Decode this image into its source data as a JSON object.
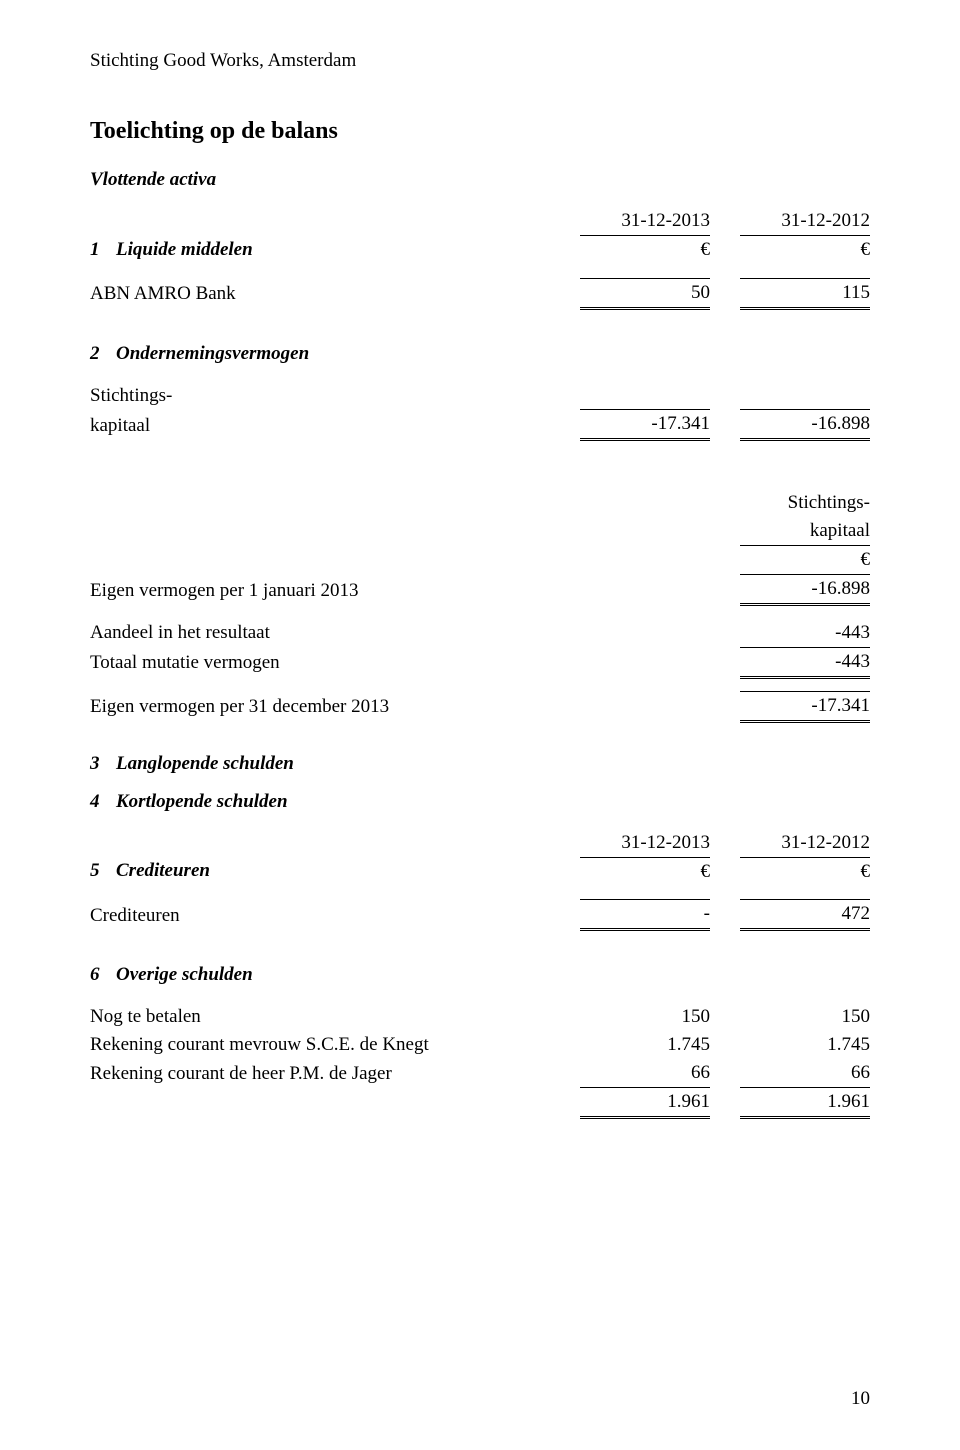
{
  "org": "Stichting Good Works, Amsterdam",
  "title": "Toelichting op de balans",
  "sec_vlottende": "Vlottende activa",
  "periods": {
    "p1": "31-12-2013",
    "p2": "31-12-2012"
  },
  "euro": "€",
  "dash": "-",
  "item1": {
    "num": "1",
    "label": "Liquide middelen",
    "row1": {
      "label": "ABN AMRO Bank",
      "v1": "50",
      "v2": "115"
    }
  },
  "item2": {
    "num": "2",
    "label": "Ondernemingsvermogen",
    "row1_l1": "Stichtings-",
    "row1_l2": "kapitaal",
    "row1_v1": "-17.341",
    "row1_v2": "-16.898"
  },
  "capital_movement": {
    "col_header_l1": "Stichtings-",
    "col_header_l2": "kapitaal",
    "open": {
      "label": "Eigen vermogen per 1 januari 2013",
      "v": "-16.898"
    },
    "share": {
      "label": "Aandeel in het resultaat",
      "v": "-443"
    },
    "mutation": {
      "label": "Totaal mutatie vermogen",
      "v": "-443"
    },
    "close": {
      "label": "Eigen vermogen per 31 december 2013",
      "v": "-17.341"
    }
  },
  "item3": {
    "num": "3",
    "label": "Langlopende schulden"
  },
  "item4": {
    "num": "4",
    "label": "Kortlopende schulden"
  },
  "item5": {
    "num": "5",
    "label": "Crediteuren",
    "row1": {
      "label": "Crediteuren",
      "v1": "-",
      "v2": "472"
    }
  },
  "item6": {
    "num": "6",
    "label": "Overige schulden",
    "rows": {
      "r1": {
        "label": "Nog te betalen",
        "v1": "150",
        "v2": "150"
      },
      "r2": {
        "label": "Rekening courant mevrouw S.C.E. de Knegt",
        "v1": "1.745",
        "v2": "1.745"
      },
      "r3": {
        "label": "Rekening courant de heer P.M. de Jager",
        "v1": "66",
        "v2": "66"
      }
    },
    "total": {
      "v1": "1.961",
      "v2": "1.961"
    }
  },
  "page_number": "10"
}
